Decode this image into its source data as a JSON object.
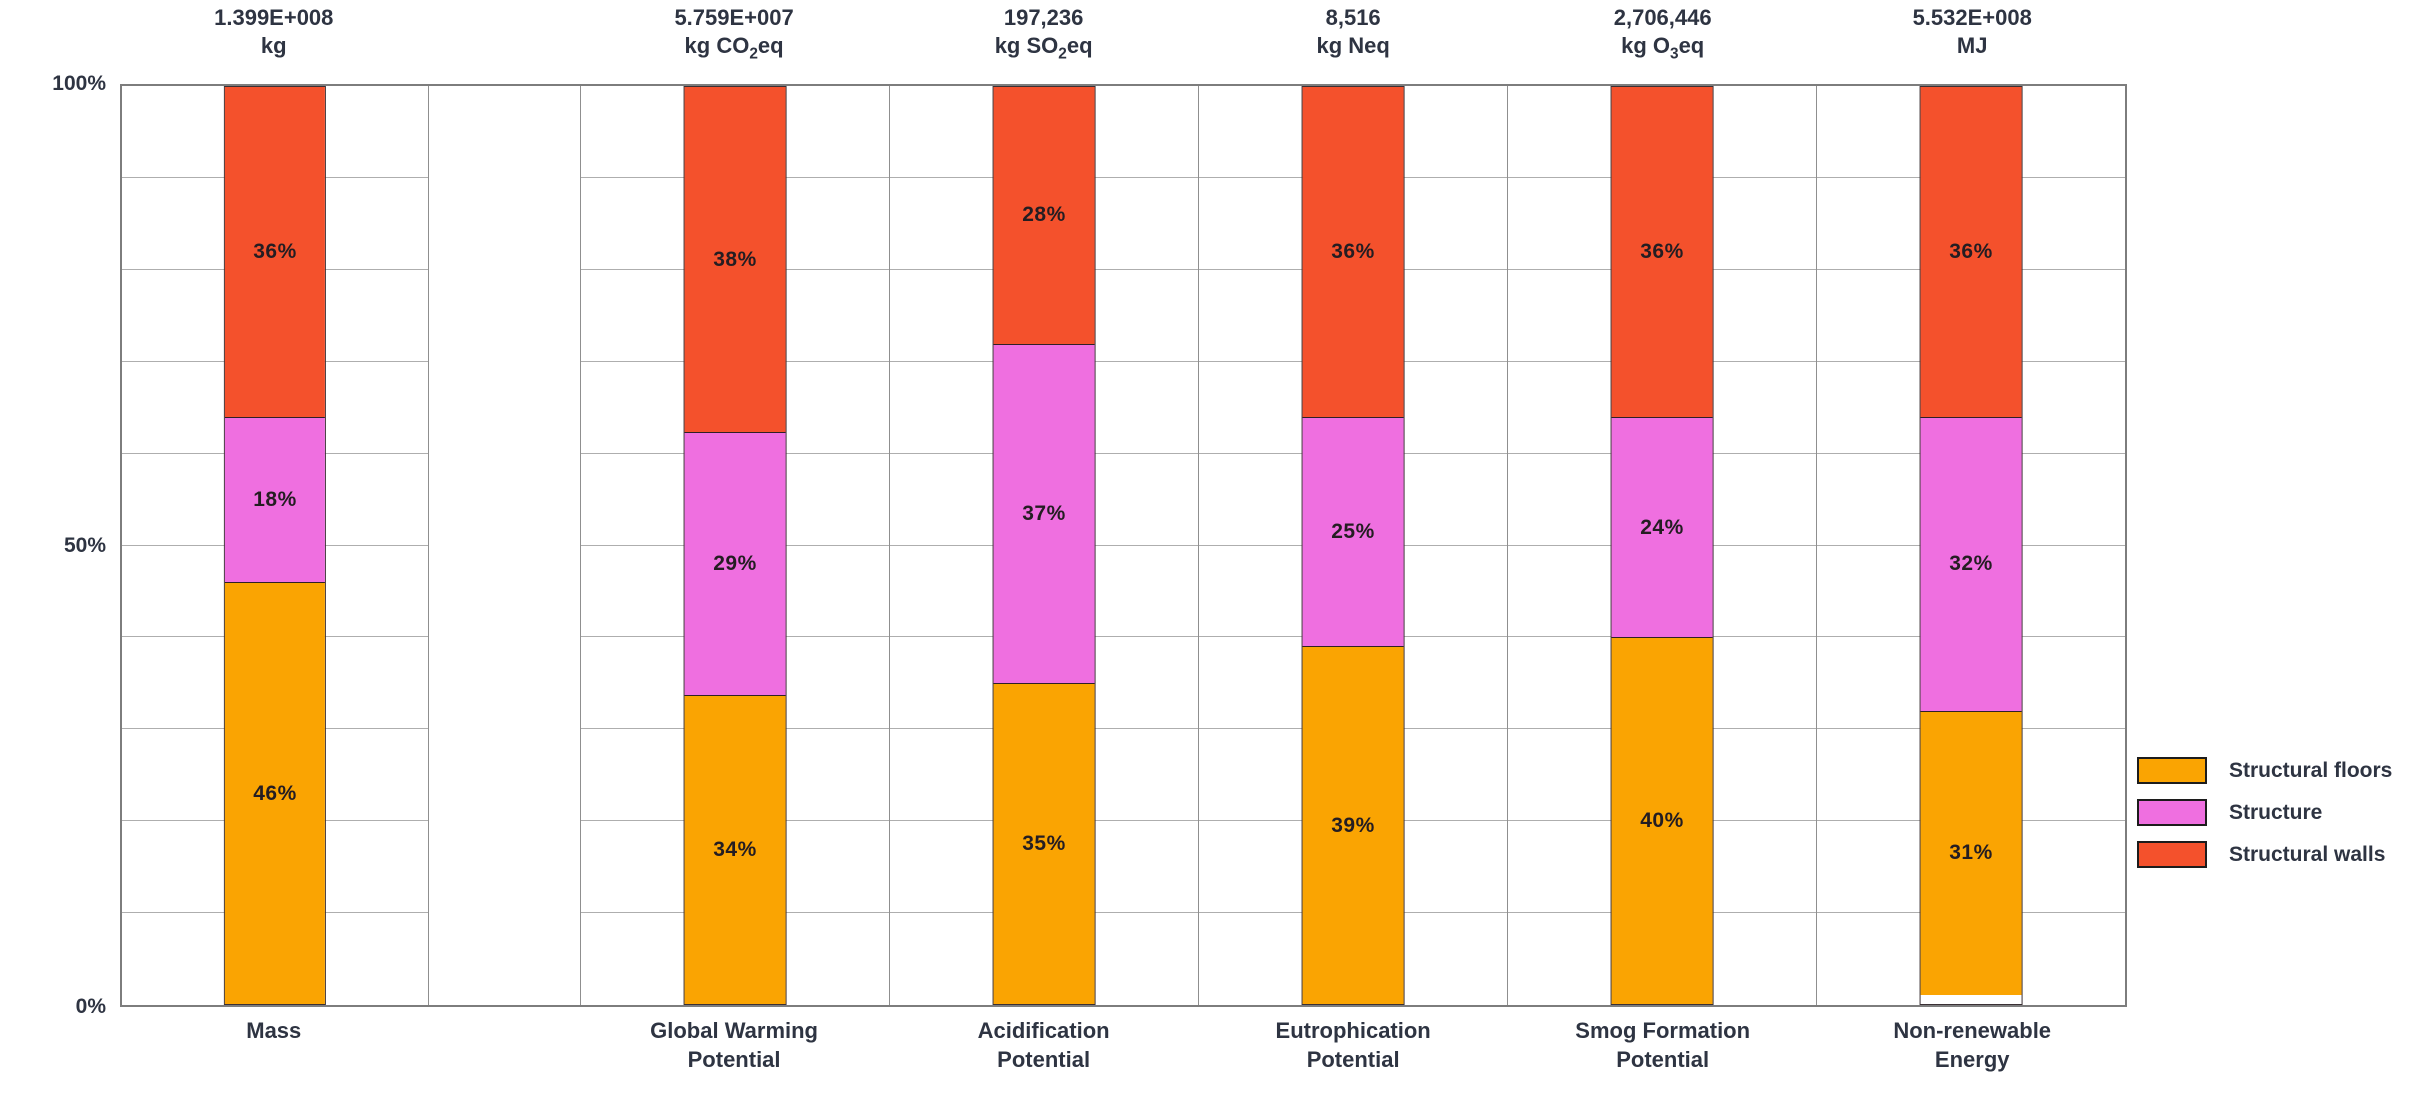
{
  "figure": {
    "description": "100% stacked column chart of building life-cycle impact measures split by assembly group",
    "background_color": "#ffffff"
  },
  "chart_data": {
    "type": "bar",
    "subtype": "stacked-100-percent-columns",
    "title": "",
    "xlabel": "",
    "ylabel": "",
    "ylim": [
      0,
      100
    ],
    "yticks": [
      {
        "label": "100%",
        "value": 100
      },
      {
        "label": "50%",
        "value": 50
      },
      {
        "label": "0%",
        "value": 0
      }
    ],
    "gridlines": {
      "visible": true,
      "horizontal_step_percent": 10
    },
    "categories": [
      {
        "label_lines": [
          "Mass"
        ],
        "total_value": "1.399E+008",
        "unit_parts": [
          "kg"
        ]
      },
      {
        "label_lines": [
          "Global Warming",
          "Potential"
        ],
        "total_value": "5.759E+007",
        "unit_parts": [
          "kg CO",
          {
            "sub": "2"
          },
          "eq"
        ]
      },
      {
        "label_lines": [
          "Acidification",
          "Potential"
        ],
        "total_value": "197,236",
        "unit_parts": [
          "kg SO",
          {
            "sub": "2"
          },
          "eq"
        ]
      },
      {
        "label_lines": [
          "Eutrophication",
          "Potential"
        ],
        "total_value": "8,516",
        "unit_parts": [
          "kg Neq"
        ]
      },
      {
        "label_lines": [
          "Smog Formation",
          "Potential"
        ],
        "total_value": "2,706,446",
        "unit_parts": [
          "kg O",
          {
            "sub": "3"
          },
          "eq"
        ]
      },
      {
        "label_lines": [
          "Non-renewable",
          "Energy"
        ],
        "total_value": "5.532E+008",
        "unit_parts": [
          "MJ"
        ]
      }
    ],
    "series": [
      {
        "name": "Structural floors",
        "color": "#FAA402",
        "stack_position": "bottom",
        "values_percent": [
          46,
          34,
          35,
          39,
          40,
          31
        ]
      },
      {
        "name": "Structure",
        "color": "#EF6FE0",
        "stack_position": "middle",
        "values_percent": [
          18,
          29,
          37,
          25,
          24,
          32
        ]
      },
      {
        "name": "Structural walls",
        "color": "#F4512C",
        "stack_position": "top",
        "values_percent": [
          36,
          38,
          28,
          36,
          36,
          36
        ]
      }
    ],
    "value_label_suffix": "%",
    "legend": {
      "position": "right",
      "entries": [
        "Structural floors",
        "Structure",
        "Structural walls"
      ]
    }
  }
}
